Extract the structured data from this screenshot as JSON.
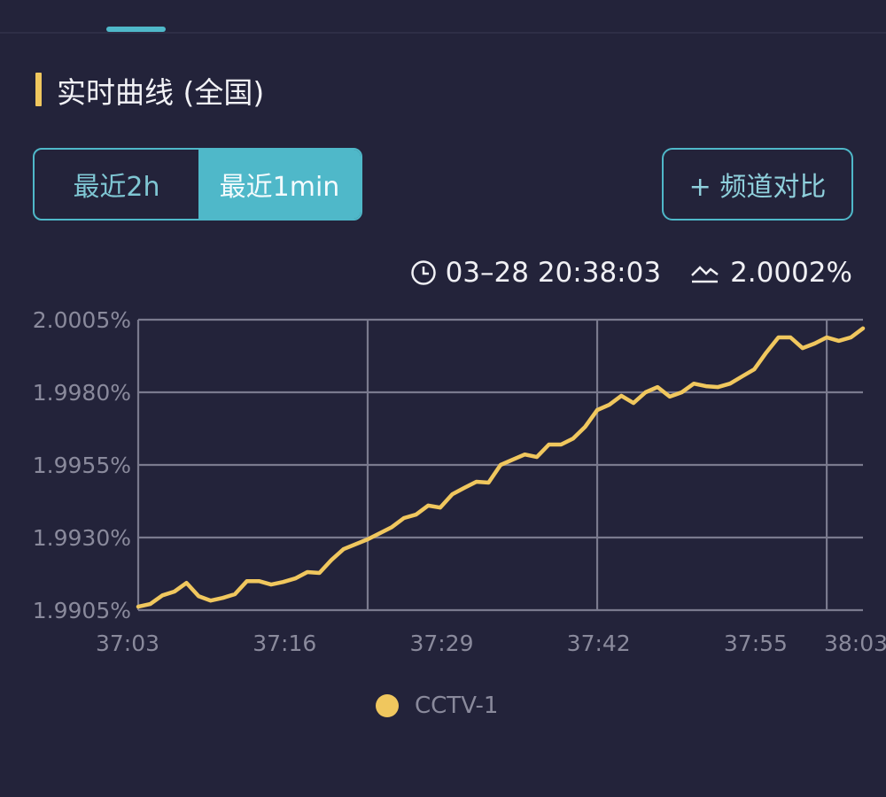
{
  "header": {
    "title": "实时曲线 (全国)"
  },
  "range_tabs": [
    {
      "label": "最近2h",
      "active": false
    },
    {
      "label": "最近1min",
      "active": true
    }
  ],
  "compare_button": {
    "label": "+ 频道对比"
  },
  "readout": {
    "time": "03–28 20:38:03",
    "value": "2.0002%",
    "time_icon": "clock-icon",
    "value_icon": "trend-line-icon"
  },
  "colors": {
    "background": "#23233a",
    "accent": "#4fb8c9",
    "series": "#f0c75e",
    "grid": "#7a7a8e",
    "highlight": "#f0c75e"
  },
  "chart_data": {
    "type": "line",
    "title": "",
    "xlabel": "",
    "ylabel": "",
    "ylim": [
      1.9905,
      2.0005
    ],
    "yticks": [
      "2.0005%",
      "1.9980%",
      "1.9955%",
      "1.9930%",
      "1.9905%"
    ],
    "ytick_values": [
      2.0005,
      1.998,
      1.9955,
      1.993,
      1.9905
    ],
    "xticks": [
      "37:03",
      "37:16",
      "37:29",
      "37:42",
      "37:55",
      "38:03"
    ],
    "xlim": [
      "37:03",
      "38:03"
    ],
    "grid": true,
    "legend": {
      "placement": "bottom",
      "entries": [
        "CCTV-1"
      ]
    },
    "series": [
      {
        "name": "CCTV-1",
        "points": [
          [
            "37:03",
            1.99062
          ],
          [
            "37:04",
            1.99071
          ],
          [
            "37:05",
            1.99101
          ],
          [
            "37:06",
            1.99114
          ],
          [
            "37:07",
            1.99144
          ],
          [
            "37:08",
            1.99098
          ],
          [
            "37:09",
            1.99083
          ],
          [
            "37:10",
            1.99092
          ],
          [
            "37:11",
            1.99105
          ],
          [
            "37:12",
            1.9915
          ],
          [
            "37:13",
            1.9915
          ],
          [
            "37:14",
            1.99138
          ],
          [
            "37:15",
            1.99147
          ],
          [
            "37:16",
            1.99159
          ],
          [
            "37:17",
            1.99181
          ],
          [
            "37:18",
            1.99178
          ],
          [
            "37:19",
            1.99223
          ],
          [
            "37:20",
            1.9926
          ],
          [
            "37:22",
            1.99294
          ],
          [
            "37:23",
            1.99315
          ],
          [
            "37:24",
            1.99336
          ],
          [
            "37:25",
            1.99367
          ],
          [
            "37:26",
            1.99379
          ],
          [
            "37:27",
            1.9941
          ],
          [
            "37:28",
            1.99403
          ],
          [
            "37:29",
            1.99449
          ],
          [
            "37:30",
            1.99471
          ],
          [
            "37:31",
            1.99492
          ],
          [
            "37:32",
            1.99489
          ],
          [
            "37:33",
            1.9955
          ],
          [
            "37:34",
            1.99568
          ],
          [
            "37:35",
            1.99586
          ],
          [
            "37:36",
            1.99577
          ],
          [
            "37:37",
            1.9962
          ],
          [
            "37:38",
            1.9962
          ],
          [
            "37:39",
            1.99641
          ],
          [
            "37:40",
            1.99681
          ],
          [
            "37:41",
            1.99739
          ],
          [
            "37:42",
            1.99757
          ],
          [
            "37:43",
            1.99788
          ],
          [
            "37:44",
            1.99763
          ],
          [
            "37:45",
            1.998
          ],
          [
            "37:46",
            1.99818
          ],
          [
            "37:47",
            1.99785
          ],
          [
            "37:48",
            1.998
          ],
          [
            "37:49",
            1.9983
          ],
          [
            "37:50",
            1.99821
          ],
          [
            "37:51",
            1.99818
          ],
          [
            "37:52",
            1.9983
          ],
          [
            "37:53",
            1.99855
          ],
          [
            "37:54",
            1.99879
          ],
          [
            "37:55",
            1.99937
          ],
          [
            "37:56",
            1.99989
          ],
          [
            "37:57",
            1.99989
          ],
          [
            "37:58",
            1.99952
          ],
          [
            "37:59",
            1.99968
          ],
          [
            "38:00",
            1.99989
          ],
          [
            "38:01",
            1.99977
          ],
          [
            "38:02",
            1.99989
          ],
          [
            "38:03",
            2.0002
          ]
        ]
      }
    ]
  }
}
